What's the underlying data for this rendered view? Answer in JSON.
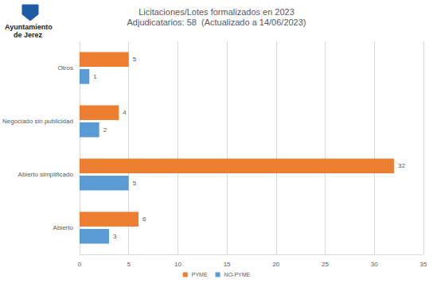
{
  "chart_data": {
    "type": "bar",
    "title": "Licitaciones/Lotes formalizados en 2023",
    "subtitle": "Adjudicatarios: 58  (Actualizado a 14/06/2023)",
    "annotations": [
      "Ayuntamiento",
      "de Jerez"
    ],
    "orientation": "horizontal",
    "categories": [
      "Abierto",
      "Abierto simplificado",
      "Negociado sin publicidad",
      "Otros"
    ],
    "series": [
      {
        "name": "PYME",
        "color": "#ed7d31",
        "values": [
          6,
          32,
          4,
          5
        ]
      },
      {
        "name": "NO-PYME",
        "color": "#5b9bd5",
        "values": [
          3,
          5,
          2,
          1
        ]
      }
    ],
    "xlim": [
      0,
      35
    ],
    "xticks": [
      0,
      5,
      10,
      15,
      20,
      25,
      30,
      35
    ],
    "grid": true,
    "legend": "bottom",
    "data_labels": true
  }
}
